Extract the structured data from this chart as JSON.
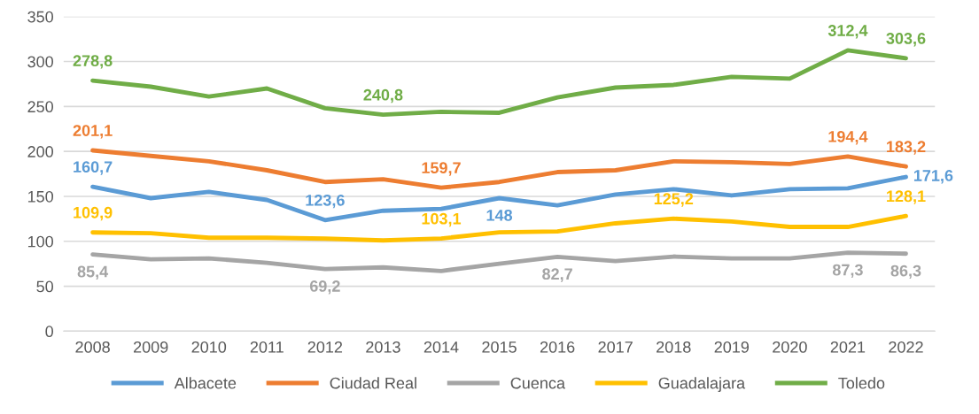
{
  "chart_data": {
    "type": "line",
    "categories": [
      "2008",
      "2009",
      "2010",
      "2011",
      "2012",
      "2013",
      "2014",
      "2015",
      "2016",
      "2017",
      "2018",
      "2019",
      "2020",
      "2021",
      "2022"
    ],
    "ylim": [
      0,
      350
    ],
    "yticks": [
      0,
      50,
      100,
      150,
      200,
      250,
      300,
      350
    ],
    "grid": "y",
    "legend": "bottom",
    "marker": "none",
    "line_style": "solid",
    "series": [
      {
        "name": "Albacete",
        "color": "#5b9bd5",
        "values": [
          160.7,
          148,
          155,
          146,
          123.6,
          134,
          136,
          148,
          140,
          152,
          158,
          151,
          158,
          159,
          171.6
        ],
        "value_labels": [
          "160,7",
          null,
          null,
          null,
          "123,6",
          null,
          null,
          "148",
          null,
          null,
          null,
          null,
          null,
          null,
          "171,6"
        ]
      },
      {
        "name": "Ciudad Real",
        "color": "#ed7d31",
        "values": [
          201.1,
          195,
          189,
          179,
          166,
          169,
          159.7,
          166,
          177,
          179,
          189,
          188,
          186,
          194.4,
          183.2
        ],
        "value_labels": [
          "201,1",
          null,
          null,
          null,
          null,
          null,
          "159,7",
          null,
          null,
          null,
          null,
          null,
          null,
          "194,4",
          "183,2"
        ]
      },
      {
        "name": "Cuenca",
        "color": "#a5a5a5",
        "values": [
          85.4,
          80,
          81,
          76,
          69.2,
          71,
          67,
          75,
          82.7,
          78,
          83,
          81,
          81,
          87.3,
          86.3
        ],
        "value_labels": [
          "85,4",
          null,
          null,
          null,
          "69,2",
          null,
          null,
          null,
          "82,7",
          null,
          null,
          null,
          null,
          "87,3",
          "86,3"
        ]
      },
      {
        "name": "Guadalajara",
        "color": "#ffc000",
        "values": [
          109.9,
          109,
          104,
          104,
          103,
          101,
          103.1,
          110,
          111,
          120,
          125.2,
          122,
          116,
          116,
          128.1
        ],
        "value_labels": [
          "109,9",
          null,
          null,
          null,
          null,
          null,
          "103,1",
          null,
          null,
          null,
          "125,2",
          null,
          null,
          null,
          "128,1"
        ]
      },
      {
        "name": "Toledo",
        "color": "#70ad47",
        "values": [
          278.8,
          272,
          261,
          270,
          248,
          240.8,
          244,
          243,
          260,
          271,
          274,
          283,
          281,
          312.4,
          303.6
        ],
        "value_labels": [
          "278,8",
          null,
          null,
          null,
          null,
          "240,8",
          null,
          null,
          null,
          null,
          null,
          null,
          null,
          "312,4",
          "303,6"
        ]
      }
    ]
  }
}
